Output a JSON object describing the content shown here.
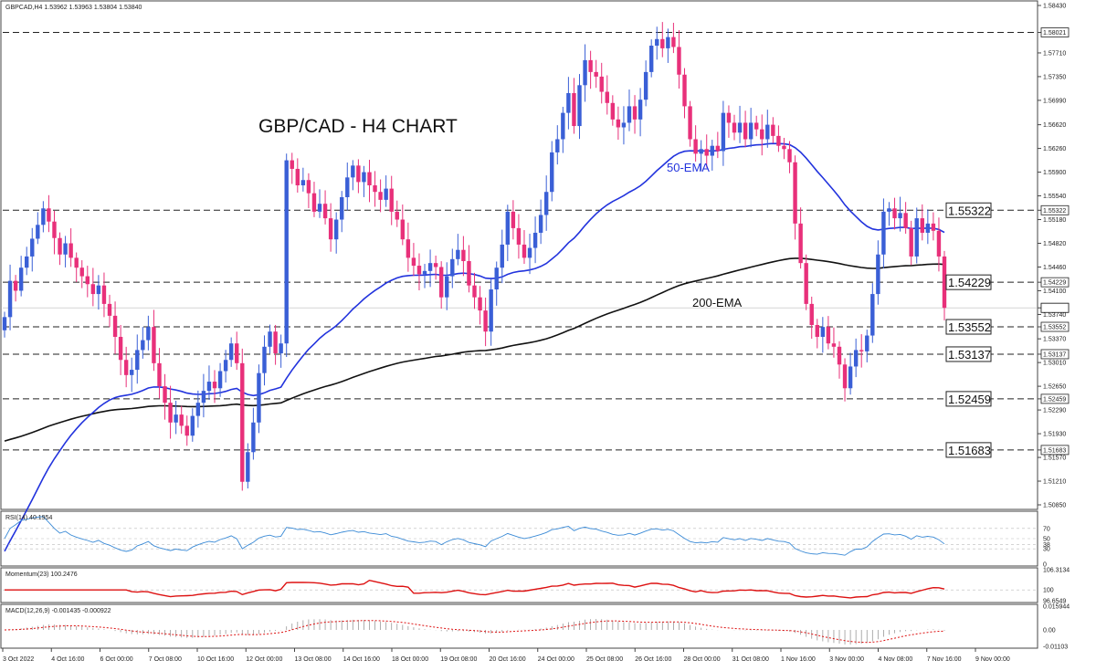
{
  "header": {
    "main": "GBPCAD,H4  1.53962 1.53963 1.53804 1.53840",
    "rsi": "RSI(14) 40.1954",
    "momentum": "Momentum(23) 100.2476",
    "macd": "MACD(12,26,9) -0.001435 -0.000922"
  },
  "chart_data": {
    "type": "candlestick",
    "title": "GBP/CAD - H4 CHART",
    "symbol": "GBPCAD",
    "timeframe": "H4",
    "ohlc_current": {
      "open": 1.53962,
      "high": 1.53963,
      "low": 1.53804,
      "close": 1.5384
    },
    "ylim": [
      1.5085,
      1.5843
    ],
    "y_ticks": [
      "1.58430",
      "1.58021",
      "1.57710",
      "1.57350",
      "1.56990",
      "1.56620",
      "1.56260",
      "1.55900",
      "1.55540",
      "1.55322",
      "1.55180",
      "1.54820",
      "1.54460",
      "1.54229",
      "1.54100",
      "1.53840",
      "1.53740",
      "1.53552",
      "1.53370",
      "1.53137",
      "1.53010",
      "1.52650",
      "1.52459",
      "1.52290",
      "1.51930",
      "1.51683",
      "1.51570",
      "1.51210",
      "1.50850"
    ],
    "highlighted_ticks": [
      "1.58021",
      "1.55322",
      "1.54229",
      "1.53840",
      "1.53552",
      "1.53137",
      "1.52459",
      "1.51683"
    ],
    "current_price_label": "1.53840",
    "x_labels": [
      "3 Oct 2022",
      "4 Oct 16:00",
      "6 Oct 00:00",
      "7 Oct 08:00",
      "10 Oct 16:00",
      "12 Oct 00:00",
      "13 Oct 08:00",
      "14 Oct 16:00",
      "18 Oct 00:00",
      "19 Oct 08:00",
      "20 Oct 16:00",
      "24 Oct 00:00",
      "25 Oct 08:00",
      "26 Oct 16:00",
      "28 Oct 00:00",
      "31 Oct 08:00",
      "1 Nov 16:00",
      "3 Nov 00:00",
      "4 Nov 08:00",
      "7 Nov 16:00",
      "9 Nov 00:00"
    ],
    "levels": [
      {
        "value": 1.58021,
        "label": ""
      },
      {
        "value": 1.55322,
        "label": "1.55322"
      },
      {
        "value": 1.54229,
        "label": "1.54229"
      },
      {
        "value": 1.53552,
        "label": "1.53552"
      },
      {
        "value": 1.53137,
        "label": "1.53137"
      },
      {
        "value": 1.52459,
        "label": "1.52459"
      },
      {
        "value": 1.51683,
        "label": "1.51683"
      }
    ],
    "ema_labels": {
      "ema50": "50-EMA",
      "ema200": "200-EMA"
    },
    "colors": {
      "bull": "#3a5fd6",
      "bear": "#e8307a",
      "ema50": "#2233dd",
      "ema200": "#111111",
      "rsi": "#3a8ad6",
      "momentum": "#dd1111",
      "macd_signal": "#dd1111",
      "macd_hist": "#999999"
    },
    "closes": [
      1.537,
      1.5425,
      1.541,
      1.5445,
      1.5462,
      1.5489,
      1.551,
      1.5535,
      1.5515,
      1.549,
      1.5465,
      1.5482,
      1.546,
      1.5445,
      1.5432,
      1.542,
      1.5405,
      1.5418,
      1.539,
      1.5372,
      1.534,
      1.5305,
      1.5282,
      1.529,
      1.532,
      1.5335,
      1.5355,
      1.53,
      1.5265,
      1.524,
      1.521,
      1.5222,
      1.5205,
      1.519,
      1.522,
      1.524,
      1.5258,
      1.5272,
      1.5262,
      1.5288,
      1.5305,
      1.533,
      1.53,
      1.512,
      1.5165,
      1.521,
      1.5285,
      1.5325,
      1.5348,
      1.5315,
      1.533,
      1.5608,
      1.5595,
      1.557,
      1.5578,
      1.5558,
      1.553,
      1.5542,
      1.552,
      1.5488,
      1.5518,
      1.5552,
      1.5582,
      1.56,
      1.5575,
      1.559,
      1.557,
      1.556,
      1.5548,
      1.5565,
      1.553,
      1.5518,
      1.5488,
      1.546,
      1.5448,
      1.5435,
      1.544,
      1.5452,
      1.5446,
      1.54,
      1.5432,
      1.5458,
      1.5472,
      1.5455,
      1.5418,
      1.54,
      1.538,
      1.5348,
      1.5412,
      1.5445,
      1.548,
      1.553,
      1.5505,
      1.548,
      1.546,
      1.5475,
      1.5498,
      1.5525,
      1.556,
      1.562,
      1.564,
      1.568,
      1.571,
      1.566,
      1.5722,
      1.576,
      1.5742,
      1.5735,
      1.5712,
      1.5695,
      1.567,
      1.5658,
      1.5665,
      1.569,
      1.567,
      1.57,
      1.5742,
      1.5782,
      1.5792,
      1.5778,
      1.5795,
      1.578,
      1.5738,
      1.569,
      1.564,
      1.5618,
      1.5625,
      1.5615,
      1.563,
      1.5622,
      1.568,
      1.5665,
      1.565,
      1.5665,
      1.564,
      1.5665,
      1.5655,
      1.564,
      1.5662,
      1.5645,
      1.563,
      1.5625,
      1.5605,
      1.5512,
      1.5452,
      1.539,
      1.5358,
      1.534,
      1.5355,
      1.533,
      1.5325,
      1.5298,
      1.5262,
      1.5295,
      1.532,
      1.5318,
      1.5342,
      1.5405,
      1.5465,
      1.553,
      1.5535,
      1.552,
      1.5528,
      1.5505,
      1.5462,
      1.552,
      1.5498,
      1.5512,
      1.5501,
      1.5462,
      1.5384
    ],
    "rsi_ylim": [
      0,
      100
    ],
    "rsi_ticks": [
      "70",
      "50",
      "38",
      "30",
      "0"
    ],
    "momentum_ticks": [
      "106.3134",
      "100",
      "96.6549"
    ],
    "macd_ticks": [
      "0.015944",
      "0.00",
      "-0.01103"
    ]
  }
}
